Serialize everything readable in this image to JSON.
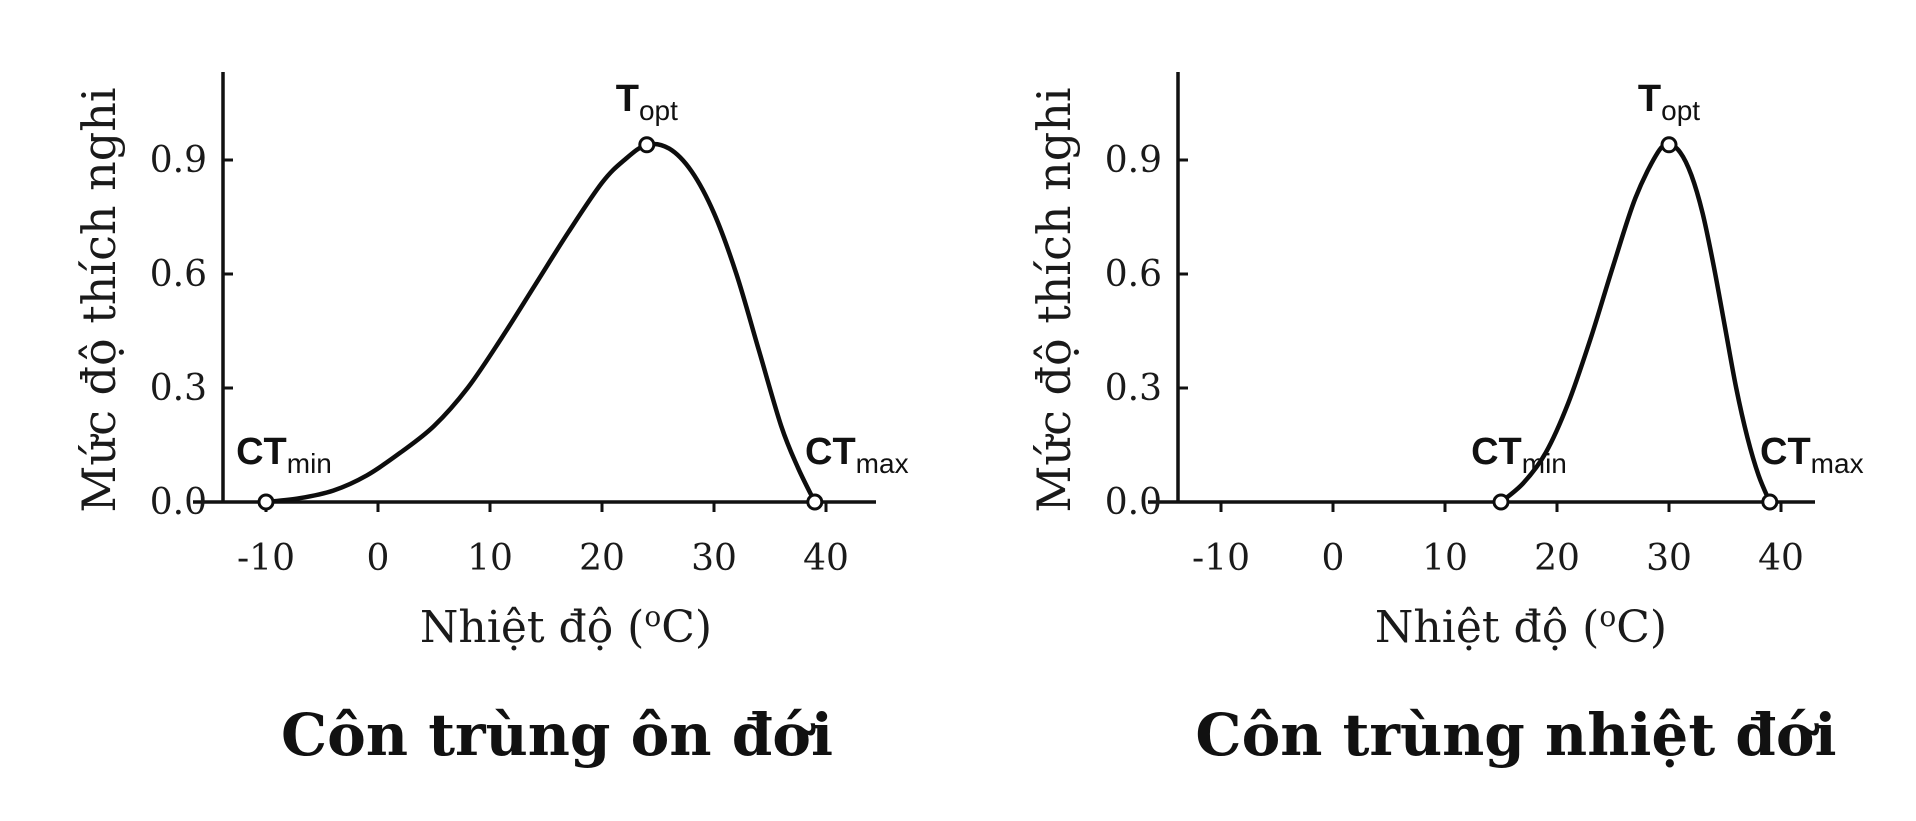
{
  "chart_data": [
    {
      "type": "line",
      "title": "Côn trùng ôn đới",
      "xlabel": "Nhiệt độ (",
      "xlabel_sup": "o",
      "xlabel_suffix": "C)",
      "ylabel": "Mức độ thích nghi",
      "xticks": [
        "-10",
        "0",
        "10",
        "20",
        "30",
        "40"
      ],
      "yticks": [
        "0.0",
        "0.3",
        "0.6",
        "0.9"
      ],
      "xlim": [
        -14,
        44
      ],
      "ylim": [
        0,
        1.12
      ],
      "x": [
        -10,
        -7,
        -4,
        -1,
        2,
        5,
        8,
        11,
        14,
        17,
        20,
        22,
        24,
        26,
        28,
        30,
        32,
        34,
        36,
        37.5,
        39
      ],
      "y": [
        0,
        0.01,
        0.03,
        0.07,
        0.13,
        0.2,
        0.3,
        0.43,
        0.57,
        0.71,
        0.84,
        0.9,
        0.94,
        0.93,
        0.87,
        0.76,
        0.6,
        0.4,
        0.2,
        0.09,
        0
      ],
      "markers": [
        {
          "label": "CT",
          "sub": "min",
          "x": -10,
          "y": 0
        },
        {
          "label": "T",
          "sub": "opt",
          "x": 24,
          "y": 0.94
        },
        {
          "label": "CT",
          "sub": "max",
          "x": 39,
          "y": 0
        }
      ]
    },
    {
      "type": "line",
      "title": "Côn trùng nhiệt đới",
      "xlabel": "Nhiệt độ (",
      "xlabel_sup": "o",
      "xlabel_suffix": "C)",
      "ylabel": "Mức độ thích nghi",
      "xticks": [
        "-10",
        "0",
        "10",
        "20",
        "30",
        "40"
      ],
      "yticks": [
        "0.0",
        "0.3",
        "0.6",
        "0.9"
      ],
      "xlim": [
        -14,
        44
      ],
      "ylim": [
        0,
        1.12
      ],
      "x": [
        15,
        17,
        19,
        21,
        23,
        25,
        27,
        29,
        30,
        31,
        32,
        33,
        34,
        35,
        36,
        37,
        38,
        39
      ],
      "y": [
        0,
        0.05,
        0.13,
        0.26,
        0.43,
        0.62,
        0.8,
        0.92,
        0.94,
        0.92,
        0.86,
        0.76,
        0.62,
        0.46,
        0.3,
        0.17,
        0.07,
        0
      ],
      "markers": [
        {
          "label": "CT",
          "sub": "min",
          "x": 15,
          "y": 0
        },
        {
          "label": "T",
          "sub": "opt",
          "x": 30,
          "y": 0.94
        },
        {
          "label": "CT",
          "sub": "max",
          "x": 39,
          "y": 0
        }
      ]
    }
  ]
}
